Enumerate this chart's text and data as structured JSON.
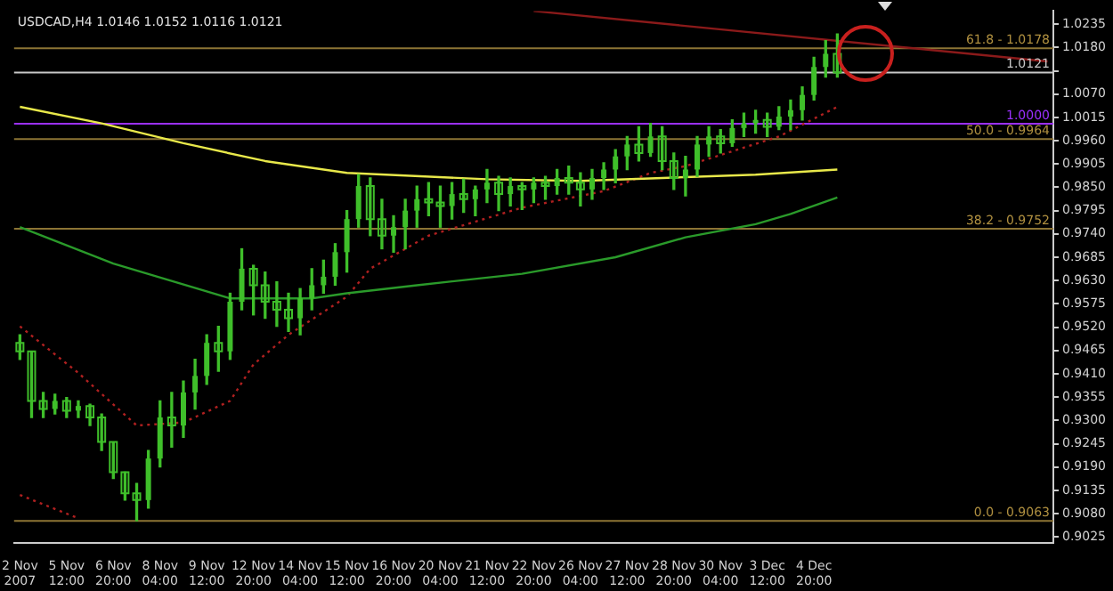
{
  "chart_data": {
    "type": "candlestick",
    "title": "USDCAD,H4 1.0146 1.0152 1.0116 1.0121",
    "color": "#3fbf2a",
    "categories": [
      "2 Nov 2007",
      null,
      null,
      null,
      "5 Nov 12:00",
      null,
      null,
      null,
      "6 Nov 20:00",
      null,
      null,
      null,
      "8 Nov 04:00",
      null,
      null,
      null,
      "9 Nov 12:00",
      null,
      null,
      null,
      "12 Nov 20:00",
      null,
      null,
      null,
      "14 Nov 04:00",
      null,
      null,
      null,
      "15 Nov 12:00",
      null,
      null,
      null,
      "16 Nov 20:00",
      null,
      null,
      null,
      "20 Nov 04:00",
      null,
      null,
      null,
      "21 Nov 12:00",
      null,
      null,
      null,
      "22 Nov 20:00",
      null,
      null,
      null,
      "26 Nov 04:00",
      null,
      null,
      null,
      "27 Nov 12:00",
      null,
      null,
      null,
      "28 Nov 20:00",
      null,
      null,
      null,
      "30 Nov 04:00",
      null,
      null,
      null,
      "3 Dec 12:00",
      null,
      null,
      null,
      "4 Dec 20:00",
      null,
      null,
      null,
      null,
      null,
      null,
      null,
      null,
      null,
      null,
      null,
      null,
      null,
      null,
      null,
      null,
      null,
      null,
      null,
      null
    ],
    "ohlc": [
      [
        0.9483,
        0.9502,
        0.9444,
        0.9463
      ],
      [
        0.9463,
        0.9463,
        0.9307,
        0.9346
      ],
      [
        0.9346,
        0.9366,
        0.9307,
        0.9327
      ],
      [
        0.9327,
        0.9362,
        0.9315,
        0.9346
      ],
      [
        0.9346,
        0.9354,
        0.9307,
        0.9323
      ],
      [
        0.9323,
        0.9346,
        0.9307,
        0.9334
      ],
      [
        0.9334,
        0.9338,
        0.9288,
        0.9307
      ],
      [
        0.9307,
        0.9315,
        0.9229,
        0.9249
      ],
      [
        0.9249,
        0.9249,
        0.9163,
        0.9178
      ],
      [
        0.9178,
        0.9178,
        0.9112,
        0.9128
      ],
      [
        0.9128,
        0.9151,
        0.9063,
        0.9112
      ],
      [
        0.9112,
        0.9229,
        0.9093,
        0.921
      ],
      [
        0.921,
        0.9346,
        0.919,
        0.9307
      ],
      [
        0.9307,
        0.9366,
        0.9237,
        0.9288
      ],
      [
        0.9288,
        0.9393,
        0.926,
        0.9366
      ],
      [
        0.9366,
        0.9444,
        0.9327,
        0.9405
      ],
      [
        0.9405,
        0.9502,
        0.9385,
        0.9483
      ],
      [
        0.9483,
        0.9522,
        0.9416,
        0.9463
      ],
      [
        0.9463,
        0.96,
        0.9444,
        0.958
      ],
      [
        0.958,
        0.9705,
        0.9561,
        0.9658
      ],
      [
        0.9658,
        0.9666,
        0.9549,
        0.9619
      ],
      [
        0.9619,
        0.965,
        0.9541,
        0.958
      ],
      [
        0.958,
        0.9627,
        0.9522,
        0.9561
      ],
      [
        0.9561,
        0.96,
        0.951,
        0.9541
      ],
      [
        0.9541,
        0.9611,
        0.9502,
        0.9588
      ],
      [
        0.9588,
        0.9658,
        0.9561,
        0.9619
      ],
      [
        0.9619,
        0.9678,
        0.96,
        0.9639
      ],
      [
        0.9639,
        0.9717,
        0.9619,
        0.9697
      ],
      [
        0.9697,
        0.9795,
        0.965,
        0.9775
      ],
      [
        0.9775,
        0.988,
        0.9756,
        0.9853
      ],
      [
        0.9853,
        0.9872,
        0.9736,
        0.9775
      ],
      [
        0.9775,
        0.9822,
        0.9705,
        0.9736
      ],
      [
        0.9736,
        0.9783,
        0.9697,
        0.9756
      ],
      [
        0.9756,
        0.9822,
        0.9705,
        0.9795
      ],
      [
        0.9795,
        0.9853,
        0.9756,
        0.9822
      ],
      [
        0.9822,
        0.9861,
        0.9783,
        0.9814
      ],
      [
        0.9814,
        0.9853,
        0.9756,
        0.9806
      ],
      [
        0.9806,
        0.9861,
        0.9775,
        0.9834
      ],
      [
        0.9834,
        0.9869,
        0.9791,
        0.9822
      ],
      [
        0.9822,
        0.9853,
        0.9783,
        0.9845
      ],
      [
        0.9845,
        0.9892,
        0.9814,
        0.9861
      ],
      [
        0.9861,
        0.9876,
        0.9795,
        0.9834
      ],
      [
        0.9834,
        0.9872,
        0.9806,
        0.9853
      ],
      [
        0.9853,
        0.9861,
        0.9798,
        0.9845
      ],
      [
        0.9845,
        0.9872,
        0.9814,
        0.9861
      ],
      [
        0.9861,
        0.9876,
        0.9822,
        0.9853
      ],
      [
        0.9853,
        0.9892,
        0.9834,
        0.9872
      ],
      [
        0.9872,
        0.99,
        0.9834,
        0.9861
      ],
      [
        0.9861,
        0.9884,
        0.9806,
        0.9845
      ],
      [
        0.9845,
        0.9892,
        0.9822,
        0.9872
      ],
      [
        0.9872,
        0.9908,
        0.9845,
        0.9892
      ],
      [
        0.9892,
        0.9939,
        0.9861,
        0.9923
      ],
      [
        0.9923,
        0.997,
        0.9892,
        0.9951
      ],
      [
        0.9951,
        0.9993,
        0.9912,
        0.9931
      ],
      [
        0.9931,
        1.0001,
        0.9923,
        0.997
      ],
      [
        0.997,
        0.9993,
        0.9892,
        0.9912
      ],
      [
        0.9912,
        0.9931,
        0.9845,
        0.9872
      ],
      [
        0.9872,
        0.9923,
        0.983,
        0.9892
      ],
      [
        0.9892,
        0.997,
        0.9876,
        0.9951
      ],
      [
        0.9951,
        0.9993,
        0.9923,
        0.997
      ],
      [
        0.997,
        0.9986,
        0.9931,
        0.9954
      ],
      [
        0.9954,
        1.0009,
        0.9947,
        0.999
      ],
      [
        0.999,
        1.0025,
        0.997,
        1.0001
      ],
      [
        1.0001,
        1.0032,
        0.9978,
        1.0009
      ],
      [
        1.0009,
        1.0025,
        0.997,
        0.9993
      ],
      [
        0.9993,
        1.004,
        0.9986,
        1.0017
      ],
      [
        1.0017,
        1.0056,
        0.9986,
        1.0032
      ],
      [
        1.0032,
        1.0087,
        1.0009,
        1.0068
      ],
      [
        1.0068,
        1.0157,
        1.0056,
        1.0134
      ],
      [
        1.0134,
        1.0196,
        1.011,
        1.0165
      ],
      [
        1.0165,
        1.0212,
        1.011,
        1.0121
      ],
      null,
      null,
      null,
      null,
      null,
      null,
      null,
      null,
      null,
      null,
      null,
      null,
      null,
      null,
      null,
      null,
      null,
      null
    ],
    "series": [
      {
        "type": "line",
        "color": "#e8e84a",
        "values": [
          1.004,
          null,
          null,
          null,
          null,
          null,
          null,
          1.0001,
          null,
          null,
          null,
          null,
          null,
          null,
          0.9954,
          null,
          null,
          null,
          null,
          null,
          null,
          0.9912,
          null,
          null,
          null,
          null,
          null,
          null,
          0.9884,
          null,
          null,
          null,
          null,
          null,
          null,
          null,
          null,
          null,
          null,
          null,
          0.9869,
          null,
          null,
          null,
          null,
          null,
          null,
          null,
          0.9865,
          null,
          null,
          null,
          null,
          null,
          null,
          0.9872,
          null,
          null,
          null,
          null,
          null,
          null,
          null,
          0.988,
          null,
          null,
          null,
          null,
          null,
          null,
          0.9892,
          null,
          null,
          null,
          null,
          null,
          null,
          null,
          null,
          null,
          null,
          null,
          null,
          null,
          null,
          null,
          null,
          null,
          null
        ]
      },
      {
        "type": "line",
        "color": "#2a9a2a",
        "values": [
          0.9756,
          null,
          null,
          null,
          null,
          null,
          null,
          null,
          0.967,
          null,
          null,
          null,
          null,
          null,
          null,
          null,
          null,
          null,
          0.9588,
          null,
          null,
          null,
          null,
          null,
          null,
          0.9588,
          null,
          null,
          0.96,
          null,
          null,
          null,
          null,
          null,
          0.9619,
          null,
          null,
          null,
          null,
          null,
          null,
          null,
          null,
          0.9646,
          null,
          null,
          null,
          null,
          null,
          null,
          null,
          0.9685,
          null,
          null,
          null,
          null,
          null,
          0.9732,
          null,
          null,
          null,
          null,
          null,
          0.9763,
          null,
          null,
          0.9787,
          null,
          null,
          null,
          0.9826,
          null,
          null,
          null,
          null,
          null,
          null,
          null,
          null,
          null,
          null,
          null,
          null,
          null,
          null,
          null,
          null,
          null,
          null
        ]
      },
      {
        "type": "line",
        "color": "#b02020",
        "line_style": "dotted",
        "values": [
          0.9522,
          null,
          null,
          null,
          null,
          0.9412,
          null,
          null,
          null,
          null,
          0.9288,
          null,
          null,
          null,
          0.9295,
          null,
          null,
          null,
          0.9346,
          null,
          0.9432,
          null,
          null,
          0.9502,
          null,
          null,
          null,
          null,
          0.9592,
          null,
          0.9658,
          null,
          null,
          null,
          null,
          0.9736,
          null,
          null,
          null,
          null,
          null,
          null,
          null,
          0.9802,
          null,
          null,
          null,
          null,
          null,
          null,
          0.9841,
          null,
          null,
          null,
          0.9884,
          null,
          null,
          0.99,
          null,
          null,
          null,
          null,
          null,
          null,
          null,
          0.997,
          null,
          null,
          null,
          null,
          1.004,
          null,
          null,
          null,
          null,
          null,
          null,
          null,
          null,
          null,
          null,
          null,
          null,
          null,
          null,
          null,
          null,
          null,
          null
        ]
      },
      {
        "type": "line",
        "color": "#b02020",
        "line_style": "dotted",
        "values": [
          0.9124,
          null,
          null,
          null,
          null,
          0.9069,
          null,
          null,
          null,
          null,
          null,
          null,
          null,
          null,
          null,
          null,
          null,
          null,
          null,
          null,
          null,
          null,
          null,
          null,
          null,
          null,
          null,
          null,
          null,
          null,
          null,
          null,
          null,
          null,
          null,
          null,
          null,
          null,
          null,
          null,
          null,
          null,
          null,
          null,
          null,
          null,
          null,
          null,
          null,
          null,
          null,
          null,
          null,
          null,
          null,
          null,
          null,
          null,
          null,
          null,
          null,
          null,
          null,
          null,
          null,
          null,
          null,
          null,
          null,
          null,
          null,
          null,
          null,
          null,
          null,
          null,
          null,
          null,
          null,
          null,
          null,
          null,
          null,
          null,
          null,
          null,
          null,
          null,
          null
        ]
      },
      {
        "type": "line",
        "color": "#8b1a1a",
        "values": [
          null,
          null,
          null,
          null,
          null,
          null,
          null,
          null,
          null,
          null,
          null,
          null,
          null,
          null,
          null,
          null,
          null,
          null,
          null,
          null,
          null,
          null,
          null,
          null,
          null,
          null,
          null,
          null,
          null,
          null,
          null,
          null,
          null,
          null,
          null,
          null,
          null,
          null,
          null,
          null,
          null,
          null,
          null,
          null,
          1.0266,
          null,
          null,
          null,
          null,
          null,
          null,
          null,
          null,
          null,
          null,
          null,
          null,
          null,
          null,
          null,
          null,
          null,
          null,
          null,
          null,
          null,
          null,
          null,
          null,
          null,
          null,
          null,
          null,
          null,
          null,
          null,
          null,
          null,
          null,
          null,
          null,
          null,
          null,
          null,
          null,
          null,
          null,
          null,
          1.0147
        ]
      }
    ],
    "ref_lines": [
      {
        "axis": "y",
        "value": 1.0178,
        "color": "#8c7434"
      },
      {
        "axis": "y",
        "value": 0.9964,
        "color": "#8c7434"
      },
      {
        "axis": "y",
        "value": 0.9752,
        "color": "#8c7434"
      },
      {
        "axis": "y",
        "value": 0.9063,
        "color": "#8c7434"
      },
      {
        "axis": "y",
        "value": 1.0,
        "label": "1.0000",
        "color": "#9b30ff"
      },
      {
        "axis": "y",
        "value": 1.0121,
        "label": "1.0121",
        "color": "#c8c8c8"
      }
    ],
    "annotations": [
      {
        "text": "61.8 - 1.0178",
        "y": 1.0178
      },
      {
        "text": "50.0 - 0.9964",
        "y": 0.9964
      },
      {
        "text": "38.2 - 0.9752",
        "y": 0.9752
      },
      {
        "text": "0.0 - 0.9063",
        "y": 0.9063
      }
    ],
    "ylim": [
      0.901,
      1.0266
    ],
    "yticks": [
      1.0235,
      {
        "value": 1.018,
        "label": "1.0180"
      },
      {
        "value": 1.0125,
        "label": null
      },
      {
        "value": 1.007,
        "label": "1.0070"
      },
      1.0015,
      {
        "value": 0.996,
        "label": "0.9960"
      },
      0.9905,
      {
        "value": 0.985,
        "label": "0.9850"
      },
      0.9795,
      {
        "value": 0.974,
        "label": "0.9740"
      },
      0.9685,
      {
        "value": 0.963,
        "label": "0.9630"
      },
      0.9575,
      {
        "value": 0.952,
        "label": "0.9520"
      },
      0.9465,
      {
        "value": 0.941,
        "label": "0.9410"
      },
      0.9355,
      {
        "value": 0.93,
        "label": "0.9300"
      },
      0.9245,
      {
        "value": 0.919,
        "label": "0.9190"
      },
      0.9135,
      {
        "value": 0.908,
        "label": "0.9080"
      },
      0.9025
    ]
  }
}
